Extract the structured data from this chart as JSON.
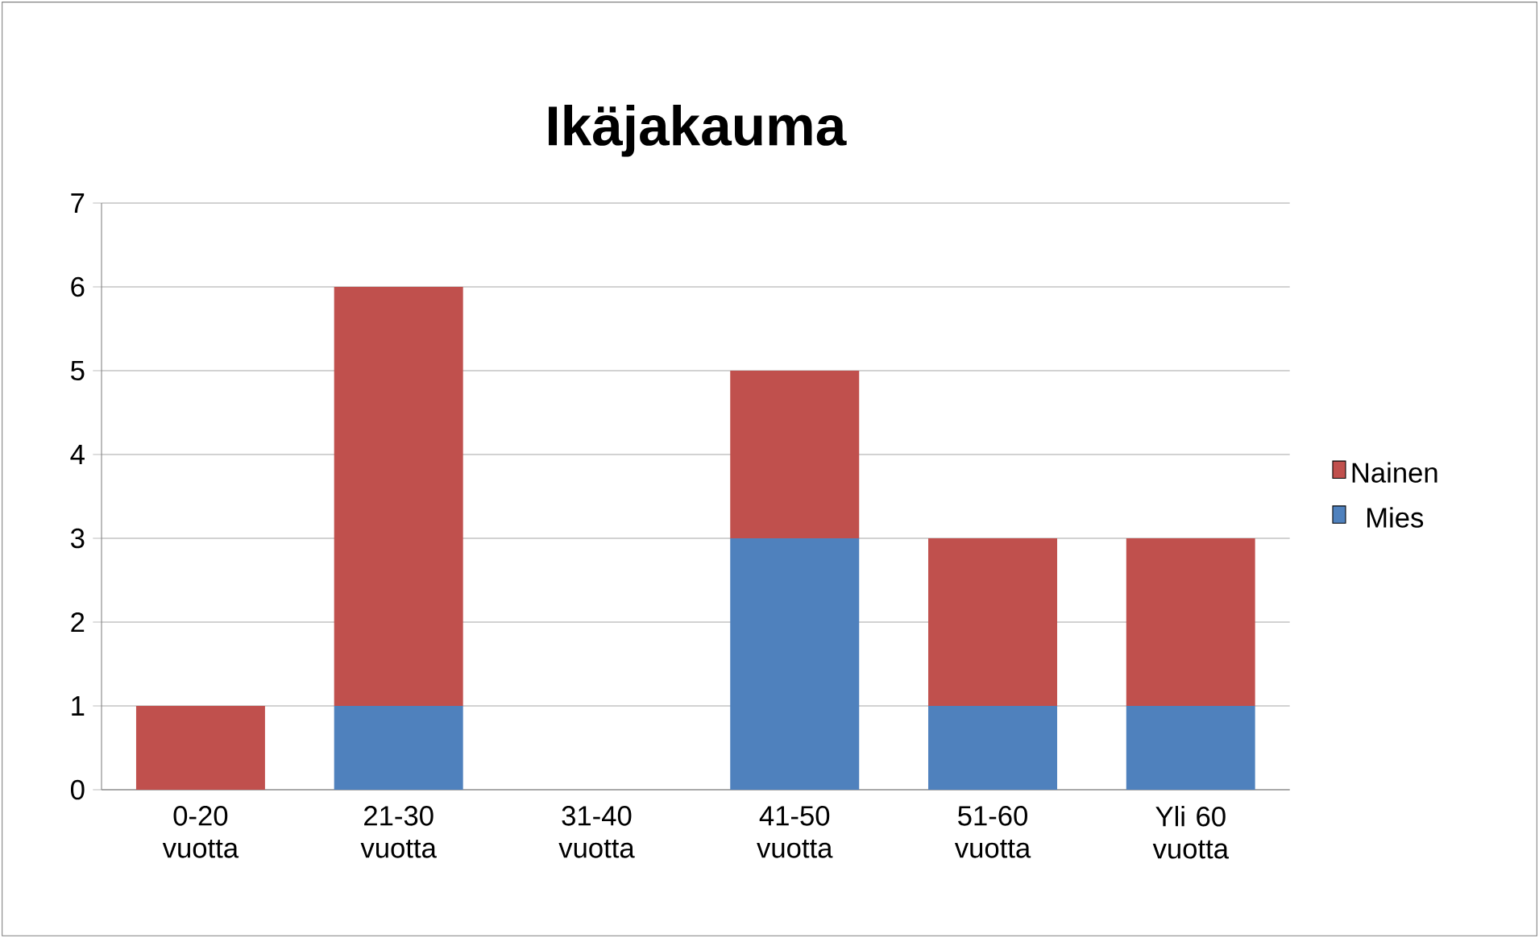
{
  "chart_data": {
    "type": "bar",
    "title": "Ikäjakauma",
    "stacked": true,
    "categories": [
      "0-20 vuotta",
      "21-30 vuotta",
      "31-40 vuotta",
      "41-50 vuotta",
      "51-60 vuotta",
      "Yli 60 vuotta"
    ],
    "series": [
      {
        "name": "Mies",
        "color": "#4f81bd",
        "values": [
          0,
          1,
          0,
          3,
          1,
          1
        ]
      },
      {
        "name": "Nainen",
        "color": "#c0504d",
        "values": [
          1,
          5,
          0,
          2,
          2,
          2
        ]
      }
    ],
    "ylim": [
      0,
      7
    ],
    "yticks": [
      0,
      1,
      2,
      3,
      4,
      5,
      6,
      7
    ],
    "grid": "y",
    "legend": "right"
  }
}
